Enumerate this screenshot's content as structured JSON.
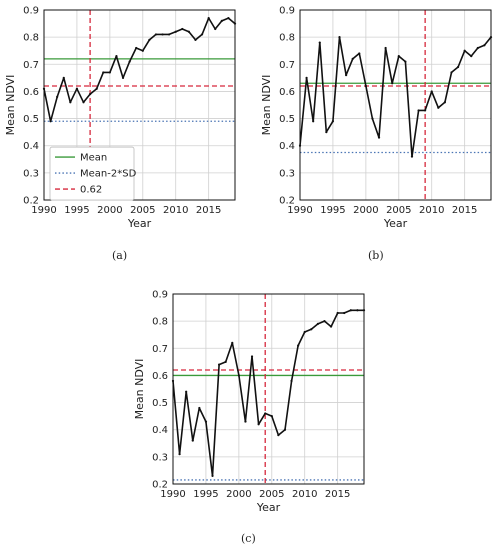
{
  "colors": {
    "mean": "#3a9a3a",
    "mean_minus_2sd": "#4a74b4",
    "threshold": "#d6283c",
    "series": "#111111",
    "grid": "#d0d0d0"
  },
  "legend": {
    "entries": [
      "Mean",
      "Mean-2*SD",
      "0.62"
    ],
    "placement": "lower-left of panel (a)"
  },
  "captions": [
    "(a)",
    "(b)",
    "(c)"
  ],
  "chart_data": [
    {
      "type": "line",
      "panel": "(a)",
      "xlabel": "Year",
      "ylabel": "Mean NDVI",
      "xlim": [
        1990,
        2019
      ],
      "ylim": [
        0.2,
        0.9
      ],
      "xticks": [
        1990,
        1995,
        2000,
        2005,
        2010,
        2015
      ],
      "yticks": [
        0.2,
        0.3,
        0.4,
        0.5,
        0.6,
        0.7,
        0.8,
        0.9
      ],
      "grid": true,
      "x": [
        1990,
        1991,
        1992,
        1993,
        1994,
        1995,
        1996,
        1997,
        1998,
        1999,
        2000,
        2001,
        2002,
        2003,
        2004,
        2005,
        2006,
        2007,
        2008,
        2009,
        2010,
        2011,
        2012,
        2013,
        2014,
        2015,
        2016,
        2017,
        2018,
        2019
      ],
      "values": [
        0.61,
        0.49,
        0.58,
        0.65,
        0.56,
        0.61,
        0.56,
        0.59,
        0.61,
        0.67,
        0.67,
        0.73,
        0.65,
        0.71,
        0.76,
        0.75,
        0.79,
        0.81,
        0.81,
        0.81,
        0.82,
        0.83,
        0.82,
        0.79,
        0.81,
        0.87,
        0.83,
        0.86,
        0.87,
        0.85
      ],
      "mean": 0.72,
      "mean_minus_2sd": 0.49,
      "threshold": 0.62,
      "vline": 1997,
      "show_legend": true
    },
    {
      "type": "line",
      "panel": "(b)",
      "xlabel": "Year",
      "ylabel": "Mean NDVI",
      "xlim": [
        1990,
        2019
      ],
      "ylim": [
        0.2,
        0.9
      ],
      "xticks": [
        1990,
        1995,
        2000,
        2005,
        2010,
        2015
      ],
      "yticks": [
        0.2,
        0.3,
        0.4,
        0.5,
        0.6,
        0.7,
        0.8,
        0.9
      ],
      "grid": true,
      "x": [
        1990,
        1991,
        1992,
        1993,
        1994,
        1995,
        1996,
        1997,
        1998,
        1999,
        2000,
        2001,
        2002,
        2003,
        2004,
        2005,
        2006,
        2007,
        2008,
        2009,
        2010,
        2011,
        2012,
        2013,
        2014,
        2015,
        2016,
        2017,
        2018,
        2019
      ],
      "values": [
        0.4,
        0.65,
        0.49,
        0.78,
        0.45,
        0.49,
        0.8,
        0.66,
        0.72,
        0.74,
        0.62,
        0.5,
        0.43,
        0.76,
        0.63,
        0.73,
        0.71,
        0.36,
        0.53,
        0.53,
        0.6,
        0.54,
        0.56,
        0.67,
        0.69,
        0.75,
        0.73,
        0.76,
        0.77,
        0.8
      ],
      "mean": 0.63,
      "mean_minus_2sd": 0.375,
      "threshold": 0.62,
      "vline": 2009,
      "show_legend": false
    },
    {
      "type": "line",
      "panel": "(c)",
      "xlabel": "Year",
      "ylabel": "Mean NDVI",
      "xlim": [
        1990,
        2019
      ],
      "ylim": [
        0.2,
        0.9
      ],
      "xticks": [
        1990,
        1995,
        2000,
        2005,
        2010,
        2015
      ],
      "yticks": [
        0.2,
        0.3,
        0.4,
        0.5,
        0.6,
        0.7,
        0.8,
        0.9
      ],
      "grid": true,
      "x": [
        1990,
        1991,
        1992,
        1993,
        1994,
        1995,
        1996,
        1997,
        1998,
        1999,
        2000,
        2001,
        2002,
        2003,
        2004,
        2005,
        2006,
        2007,
        2008,
        2009,
        2010,
        2011,
        2012,
        2013,
        2014,
        2015,
        2016,
        2017,
        2018,
        2019
      ],
      "values": [
        0.58,
        0.31,
        0.54,
        0.36,
        0.48,
        0.43,
        0.23,
        0.64,
        0.65,
        0.72,
        0.6,
        0.43,
        0.67,
        0.42,
        0.46,
        0.45,
        0.38,
        0.4,
        0.58,
        0.71,
        0.76,
        0.77,
        0.79,
        0.8,
        0.78,
        0.83,
        0.83,
        0.84,
        0.84,
        0.84
      ],
      "mean": 0.6,
      "mean_minus_2sd": 0.215,
      "threshold": 0.62,
      "vline": 2004,
      "show_legend": false
    }
  ]
}
